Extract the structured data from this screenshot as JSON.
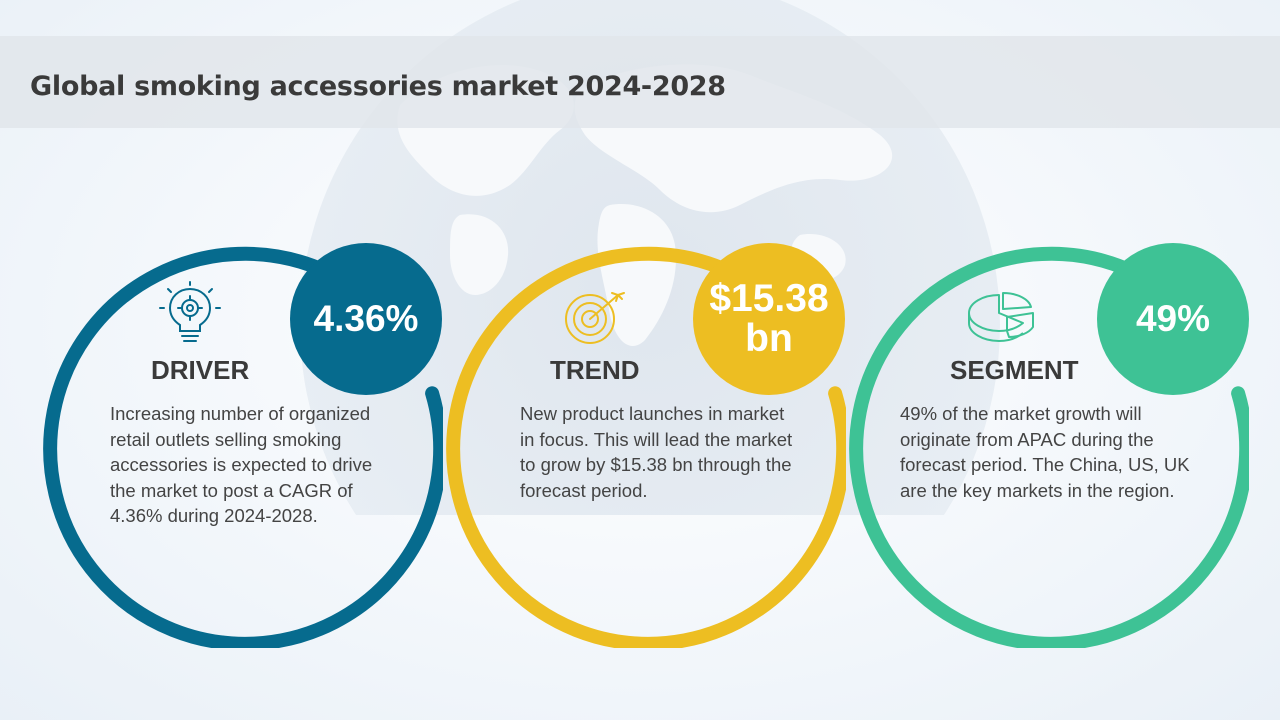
{
  "title": "Global smoking accessories market 2024-2028",
  "colors": {
    "driver": "#066b8e",
    "trend": "#edbe22",
    "segment": "#3ec295",
    "title_text": "#3a3a3a",
    "body_text": "#444444"
  },
  "cards": [
    {
      "heading": "DRIVER",
      "value": "4.36%",
      "icon": "lightbulb-gear-icon",
      "body": "Increasing number of organized retail outlets selling smoking accessories is expected to drive the market to post a CAGR of 4.36% during 2024-2028."
    },
    {
      "heading": "TREND",
      "value_line1": "$15.38",
      "value_line2": "bn",
      "icon": "target-arrow-icon",
      "body": "New product launches in market in focus. This will lead the market to grow by $15.38 bn through the forecast period."
    },
    {
      "heading": "SEGMENT",
      "value": "49%",
      "icon": "pie-chart-icon",
      "body": "49% of the market growth will originate from APAC during the forecast period. The China, US, UK are the key markets in the region."
    }
  ]
}
